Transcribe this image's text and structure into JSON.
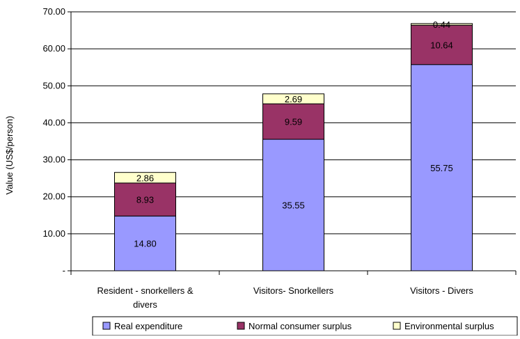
{
  "chart_data": {
    "type": "bar",
    "stacked": true,
    "title": "",
    "xlabel": "",
    "ylabel": "Value (US$/person)",
    "ylim": [
      0,
      70
    ],
    "yticks": [
      0,
      10,
      20,
      30,
      40,
      50,
      60,
      70
    ],
    "ytick_labels": [
      "-",
      "10.00",
      "20.00",
      "30.00",
      "40.00",
      "50.00",
      "60.00",
      "70.00"
    ],
    "grid": true,
    "legend_position": "bottom",
    "categories": [
      [
        "Resident - snorkellers &",
        "divers"
      ],
      [
        "Visitors- Snorkellers"
      ],
      [
        "Visitors - Divers"
      ]
    ],
    "series": [
      {
        "name": "Real expenditure",
        "color": "#9999ff",
        "values": [
          14.8,
          35.55,
          55.75
        ],
        "labels": [
          "14.80",
          "35.55",
          "55.75"
        ]
      },
      {
        "name": "Normal consumer surplus",
        "color": "#993366",
        "values": [
          8.93,
          9.59,
          10.64
        ],
        "labels": [
          "8.93",
          "9.59",
          "10.64"
        ]
      },
      {
        "name": "Environmental surplus",
        "color": "#ffffcc",
        "values": [
          2.86,
          2.69,
          0.44
        ],
        "labels": [
          "2.86",
          "2.69",
          "0.44"
        ]
      }
    ]
  }
}
